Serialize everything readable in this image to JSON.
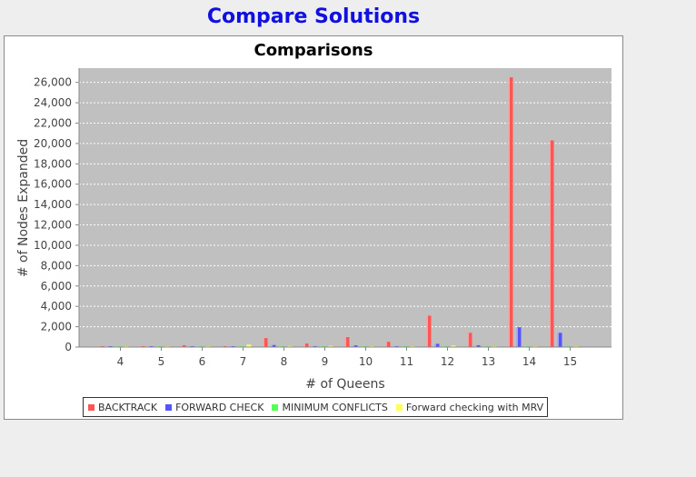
{
  "window": {
    "title": "Compare Solutions"
  },
  "colors": {
    "plot_background": "#c0c0c0",
    "gridline": "#ffffff",
    "axis_text": "#444444"
  },
  "chart_data": {
    "type": "bar",
    "title": "Comparisons",
    "xlabel": "# of Queens",
    "ylabel": "# of Nodes Expanded",
    "categories": [
      "4",
      "5",
      "6",
      "7",
      "8",
      "9",
      "10",
      "11",
      "12",
      "13",
      "14",
      "15"
    ],
    "ylim": [
      0,
      27400
    ],
    "yticks": [
      0,
      2000,
      4000,
      6000,
      8000,
      10000,
      12000,
      14000,
      16000,
      18000,
      20000,
      22000,
      24000,
      26000
    ],
    "ytick_labels": [
      "0",
      "2,000",
      "4,000",
      "6,000",
      "8,000",
      "10,000",
      "12,000",
      "14,000",
      "16,000",
      "18,000",
      "20,000",
      "22,000",
      "24,000",
      "26,000"
    ],
    "grid": true,
    "legend_position": "bottom",
    "series": [
      {
        "name": "BACKTRACK",
        "color": "#ff5555",
        "values": [
          10,
          5,
          180,
          10,
          880,
          350,
          980,
          520,
          3080,
          1400,
          26500,
          20300
        ]
      },
      {
        "name": "FORWARD CHECK",
        "color": "#5555ff",
        "values": [
          5,
          5,
          60,
          10,
          200,
          90,
          170,
          90,
          320,
          180,
          1950,
          1400
        ]
      },
      {
        "name": "MINIMUM CONFLICTS",
        "color": "#55ff55",
        "values": [
          5,
          5,
          20,
          5,
          25,
          25,
          30,
          15,
          40,
          20,
          40,
          60
        ]
      },
      {
        "name": "Forward checking with MRV",
        "color": "#ffff55",
        "values": [
          80,
          10,
          20,
          240,
          100,
          120,
          20,
          90,
          150,
          15,
          20,
          25
        ]
      }
    ]
  }
}
